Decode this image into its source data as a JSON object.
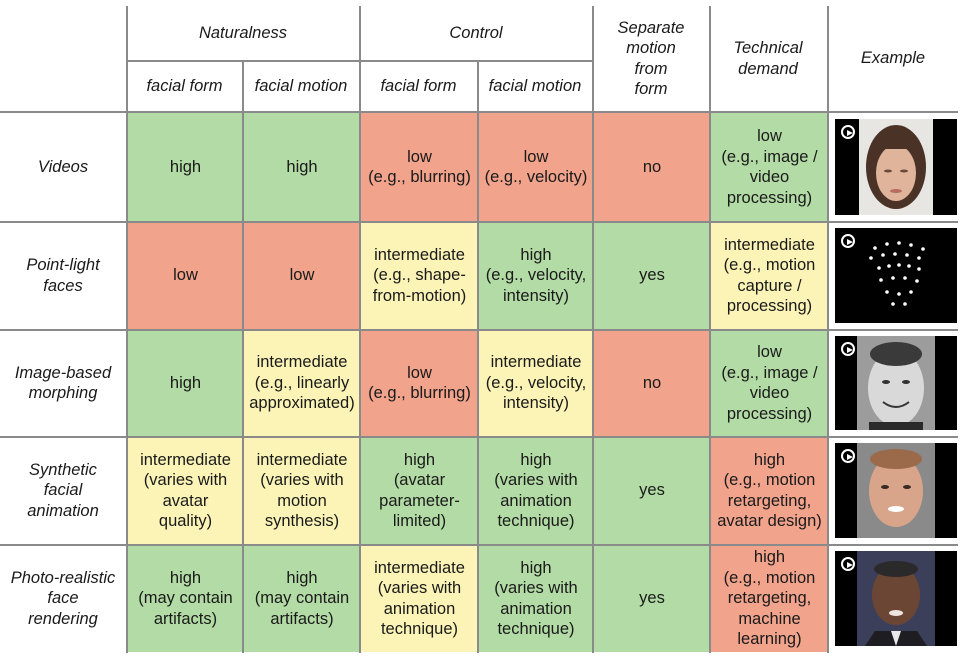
{
  "header": {
    "naturalness": "Naturalness",
    "control": "Control",
    "separate": "Separate\nmotion\nfrom\nform",
    "technical": "Technical\ndemand",
    "example": "Example",
    "sub": [
      "facial form",
      "facial motion",
      "facial form",
      "facial motion"
    ]
  },
  "rows": [
    {
      "label": "Videos",
      "cells": [
        {
          "text": "high",
          "color": "green"
        },
        {
          "text": "high",
          "color": "green"
        },
        {
          "text": "low\n(e.g., blurring)",
          "color": "red"
        },
        {
          "text": "low\n(e.g., velocity)",
          "color": "red"
        },
        {
          "text": "no",
          "color": "red"
        },
        {
          "text": "low\n(e.g., image /\nvideo\nprocessing)",
          "color": "green"
        }
      ],
      "example": "video-face-thumbnail"
    },
    {
      "label": "Point-light\nfaces",
      "cells": [
        {
          "text": "low",
          "color": "red"
        },
        {
          "text": "low",
          "color": "red"
        },
        {
          "text": "intermediate\n(e.g., shape-\nfrom-motion)",
          "color": "yellow"
        },
        {
          "text": "high\n(e.g., velocity,\nintensity)",
          "color": "green"
        },
        {
          "text": "yes",
          "color": "green"
        },
        {
          "text": "intermediate\n(e.g., motion\ncapture /\nprocessing)",
          "color": "yellow"
        }
      ],
      "example": "point-light-thumbnail"
    },
    {
      "label": "Image-based\nmorphing",
      "cells": [
        {
          "text": "high",
          "color": "green"
        },
        {
          "text": "intermediate\n(e.g., linearly\napproximated)",
          "color": "yellow"
        },
        {
          "text": "low\n(e.g., blurring)",
          "color": "red"
        },
        {
          "text": "intermediate\n(e.g., velocity,\nintensity)",
          "color": "yellow"
        },
        {
          "text": "no",
          "color": "red"
        },
        {
          "text": "low\n(e.g., image /\nvideo\nprocessing)",
          "color": "green"
        }
      ],
      "example": "morphing-face-thumbnail"
    },
    {
      "label": "Synthetic\nfacial\nanimation",
      "cells": [
        {
          "text": "intermediate\n(varies with\navatar\nquality)",
          "color": "yellow"
        },
        {
          "text": "intermediate\n(varies with\nmotion\nsynthesis)",
          "color": "yellow"
        },
        {
          "text": "high\n(avatar\nparameter-\nlimited)",
          "color": "green"
        },
        {
          "text": "high\n(varies with\nanimation\ntechnique)",
          "color": "green"
        },
        {
          "text": "yes",
          "color": "green"
        },
        {
          "text": "high\n(e.g., motion\nretargeting,\navatar design)",
          "color": "red"
        }
      ],
      "example": "avatar-face-thumbnail"
    },
    {
      "label": "Photo-realistic\nface\nrendering",
      "cells": [
        {
          "text": "high\n(may contain\nartifacts)",
          "color": "green"
        },
        {
          "text": "high\n(may contain\nartifacts)",
          "color": "green"
        },
        {
          "text": "intermediate\n(varies with\nanimation\ntechnique)",
          "color": "yellow"
        },
        {
          "text": "high\n(varies with\nanimation\ntechnique)",
          "color": "green"
        },
        {
          "text": "yes",
          "color": "green"
        },
        {
          "text": "high\n(e.g., motion\nretargeting,\nmachine\nlearning)",
          "color": "red"
        }
      ],
      "example": "photoreal-face-thumbnail"
    }
  ]
}
